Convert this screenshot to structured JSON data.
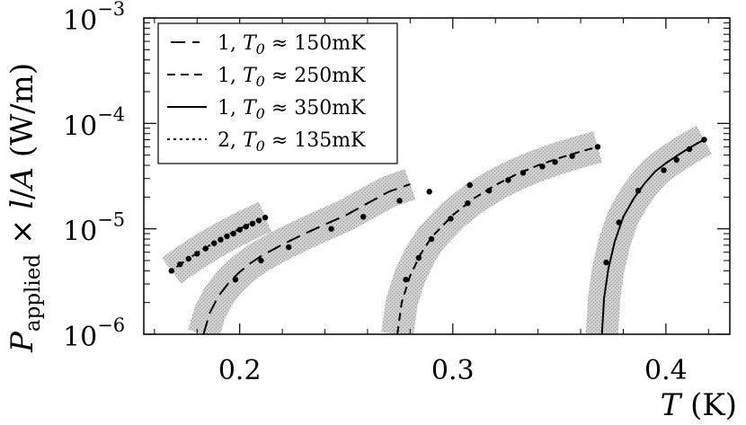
{
  "chart_data": {
    "type": "line",
    "xlabel": "T (K)",
    "ylabel": "P_applied × l/A (W/m)",
    "xlim": [
      0.155,
      0.43
    ],
    "ylim": [
      1e-06,
      0.001
    ],
    "y_scale": "log",
    "x_ticks": [
      {
        "value": 0.2,
        "label": "0.2"
      },
      {
        "value": 0.3,
        "label": "0.3"
      },
      {
        "value": 0.4,
        "label": "0.4"
      }
    ],
    "y_ticks": [
      {
        "value": 1e-06,
        "base": "10",
        "exp": "−6"
      },
      {
        "value": 1e-05,
        "base": "10",
        "exp": "−5"
      },
      {
        "value": 0.0001,
        "base": "10",
        "exp": "−4"
      },
      {
        "value": 0.001,
        "base": "10",
        "exp": "−3"
      }
    ],
    "legend": {
      "placement": "top-left",
      "entries": [
        {
          "num": "1,",
          "label": "≈ 150mK",
          "dash": "long"
        },
        {
          "num": "1,",
          "label": "≈ 250mK",
          "dash": "dashed"
        },
        {
          "num": "1,",
          "label": "≈ 350mK",
          "dash": "solid"
        },
        {
          "num": "2,",
          "label": "≈ 135mK",
          "dash": "dotted"
        }
      ]
    },
    "series": [
      {
        "name": "1, T0 ≈ 150mK",
        "style": "long",
        "curve": [
          [
            0.183,
            1e-06
          ],
          [
            0.186,
            1.6e-06
          ],
          [
            0.19,
            2.3e-06
          ],
          [
            0.195,
            3.1e-06
          ],
          [
            0.2,
            3.9e-06
          ],
          [
            0.205,
            4.7e-06
          ],
          [
            0.21,
            5.5e-06
          ],
          [
            0.22,
            7.1e-06
          ],
          [
            0.23,
            8.9e-06
          ],
          [
            0.24,
            1.1e-05
          ],
          [
            0.25,
            1.35e-05
          ],
          [
            0.26,
            1.75e-05
          ],
          [
            0.27,
            2.25e-05
          ],
          [
            0.28,
            2.65e-05
          ]
        ],
        "points": [
          [
            0.198,
            3.3e-06
          ],
          [
            0.21,
            5e-06
          ],
          [
            0.223,
            6.7e-06
          ],
          [
            0.243,
            1e-05
          ],
          [
            0.258,
            1.3e-05
          ],
          [
            0.275,
            1.85e-05
          ],
          [
            0.289,
            2.25e-05
          ],
          [
            0.308,
            2.6e-05
          ]
        ]
      },
      {
        "name": "1, T0 ≈ 250mK",
        "style": "dashed",
        "curve": [
          [
            0.274,
            1e-06
          ],
          [
            0.276,
            2e-06
          ],
          [
            0.28,
            3.6e-06
          ],
          [
            0.285,
            5.8e-06
          ],
          [
            0.29,
            8.3e-06
          ],
          [
            0.3,
            1.35e-05
          ],
          [
            0.31,
            1.95e-05
          ],
          [
            0.32,
            2.6e-05
          ],
          [
            0.33,
            3.3e-05
          ],
          [
            0.34,
            4e-05
          ],
          [
            0.35,
            4.7e-05
          ],
          [
            0.36,
            5.4e-05
          ],
          [
            0.368,
            6e-05
          ]
        ],
        "points": [
          [
            0.278,
            3.3e-06
          ],
          [
            0.284,
            5.3e-06
          ],
          [
            0.29,
            8e-06
          ],
          [
            0.299,
            1.25e-05
          ],
          [
            0.307,
            1.75e-05
          ],
          [
            0.317,
            2.3e-05
          ],
          [
            0.326,
            2.9e-05
          ],
          [
            0.333,
            3.4e-05
          ],
          [
            0.342,
            3.9e-05
          ],
          [
            0.348,
            4.3e-05
          ],
          [
            0.356,
            4.9e-05
          ],
          [
            0.368,
            6e-05
          ]
        ]
      },
      {
        "name": "1, T0 ≈ 350mK",
        "style": "solid",
        "curve": [
          [
            0.37,
            1e-06
          ],
          [
            0.371,
            2.2e-06
          ],
          [
            0.373,
            4.2e-06
          ],
          [
            0.376,
            7.6e-06
          ],
          [
            0.38,
            1.3e-05
          ],
          [
            0.385,
            1.95e-05
          ],
          [
            0.39,
            2.7e-05
          ],
          [
            0.395,
            3.5e-05
          ],
          [
            0.4,
            4.2e-05
          ],
          [
            0.405,
            4.9e-05
          ],
          [
            0.41,
            5.7e-05
          ],
          [
            0.415,
            6.5e-05
          ],
          [
            0.418,
            7e-05
          ]
        ],
        "points": [
          [
            0.372,
            4.8e-06
          ],
          [
            0.378,
            1.15e-05
          ],
          [
            0.387,
            2.3e-05
          ],
          [
            0.399,
            3.6e-05
          ],
          [
            0.405,
            4.5e-05
          ],
          [
            0.411,
            5.7e-05
          ],
          [
            0.418,
            7e-05
          ]
        ]
      },
      {
        "name": "2, T0 ≈ 135mK",
        "style": "dotted",
        "curve": [
          [
            0.168,
            4e-06
          ],
          [
            0.172,
            4.6e-06
          ],
          [
            0.176,
            5.2e-06
          ],
          [
            0.18,
            5.9e-06
          ],
          [
            0.185,
            6.8e-06
          ],
          [
            0.19,
            7.8e-06
          ],
          [
            0.195,
            8.9e-06
          ],
          [
            0.2,
            1e-05
          ],
          [
            0.205,
            1.12e-05
          ],
          [
            0.21,
            1.25e-05
          ],
          [
            0.212,
            1.3e-05
          ]
        ],
        "points": [
          [
            0.168,
            4e-06
          ],
          [
            0.172,
            4.6e-06
          ],
          [
            0.176,
            5.2e-06
          ],
          [
            0.18,
            5.8e-06
          ],
          [
            0.184,
            6.5e-06
          ],
          [
            0.188,
            7.3e-06
          ],
          [
            0.191,
            7.9e-06
          ],
          [
            0.194,
            8.5e-06
          ],
          [
            0.197,
            9e-06
          ],
          [
            0.2,
            9.8e-06
          ],
          [
            0.203,
            1.05e-05
          ],
          [
            0.206,
            1.12e-05
          ],
          [
            0.209,
            1.2e-05
          ],
          [
            0.212,
            1.28e-05
          ]
        ]
      }
    ]
  }
}
